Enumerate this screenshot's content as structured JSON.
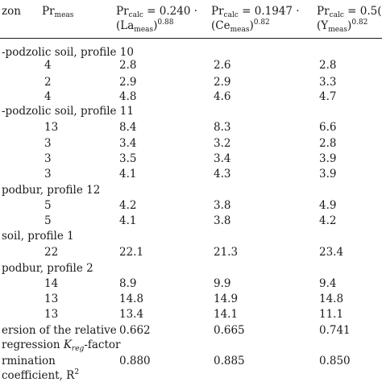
{
  "header": {
    "col0": "zon",
    "col1": {
      "main": "Pr",
      "sub": "meas"
    },
    "col2": {
      "l1_pre": "Pr",
      "l1_sub": "calc",
      "l1_post": " = 0.240 ·",
      "l2_pre": "(La",
      "l2_sub": "meas",
      "l2_post": ")",
      "l2_sup": "0.88"
    },
    "col3": {
      "l1_pre": "Pr",
      "l1_sub": "calc",
      "l1_post": " = 0.1947 ·",
      "l2_pre": "(Ce",
      "l2_sub": "meas",
      "l2_post": ")",
      "l2_sup": "0.82"
    },
    "col4": {
      "l1_pre": "Pr",
      "l1_sub": "calc",
      "l1_post": " = 0.5(",
      "l2_pre": "(Y",
      "l2_sub": "meas",
      "l2_post": ")",
      "l2_sup": "0.82"
    }
  },
  "groups": [
    {
      "label": "-podzolic soil, profile 10",
      "rows": [
        {
          "meas": "4",
          "la": "2.8",
          "ce": "2.6",
          "y": "2.8"
        },
        {
          "meas": "2",
          "la": "2.9",
          "ce": "2.9",
          "y": "3.3"
        },
        {
          "meas": "4",
          "la": "4.8",
          "ce": "4.6",
          "y": "4.7"
        }
      ]
    },
    {
      "label": "-podzolic soil, profile 11",
      "rows": [
        {
          "meas": "13",
          "la": "8.4",
          "ce": "8.3",
          "y": "6.6"
        },
        {
          "meas": "3",
          "la": "3.4",
          "ce": "3.2",
          "y": "2.8"
        },
        {
          "meas": "3",
          "la": "3.5",
          "ce": "3.4",
          "y": "3.9"
        },
        {
          "meas": "3",
          "la": "4.1",
          "ce": "4.3",
          "y": "3.9"
        }
      ]
    },
    {
      "label": " podbur, profile 12",
      "rows": [
        {
          "meas": "5",
          "la": "4.2",
          "ce": "3.8",
          "y": "4.9"
        },
        {
          "meas": "5",
          "la": "4.1",
          "ce": "3.8",
          "y": "4.2"
        }
      ]
    },
    {
      "label": " soil, profile 1",
      "rows": [
        {
          "meas": "22",
          "la": "22.1",
          "ce": "21.3",
          "y": "23.4"
        }
      ]
    },
    {
      "label": "podbur, profile 2",
      "rows": [
        {
          "meas": "14",
          "la": "8.9",
          "ce": "9.9",
          "y": "9.4"
        },
        {
          "meas": "13",
          "la": "14.8",
          "ce": "14.9",
          "y": "14.8"
        },
        {
          "meas": "13",
          "la": "13.4",
          "ce": "14.1",
          "y": "11.1"
        }
      ]
    }
  ],
  "footer": {
    "disp_l1": "ersion of the relative",
    "disp_l2_pre": "regression ",
    "disp_l2_k": "K",
    "disp_l2_ksub": "reg",
    "disp_l2_post": "-factor",
    "disp_la": "0.662",
    "disp_ce": "0.665",
    "disp_y": "0.741",
    "det_l1": "rmination",
    "det_l2_pre": "coefficient, R",
    "det_l2_sup": "2",
    "det_la": "0.880",
    "det_ce": "0.885",
    "det_y": "0.850"
  }
}
